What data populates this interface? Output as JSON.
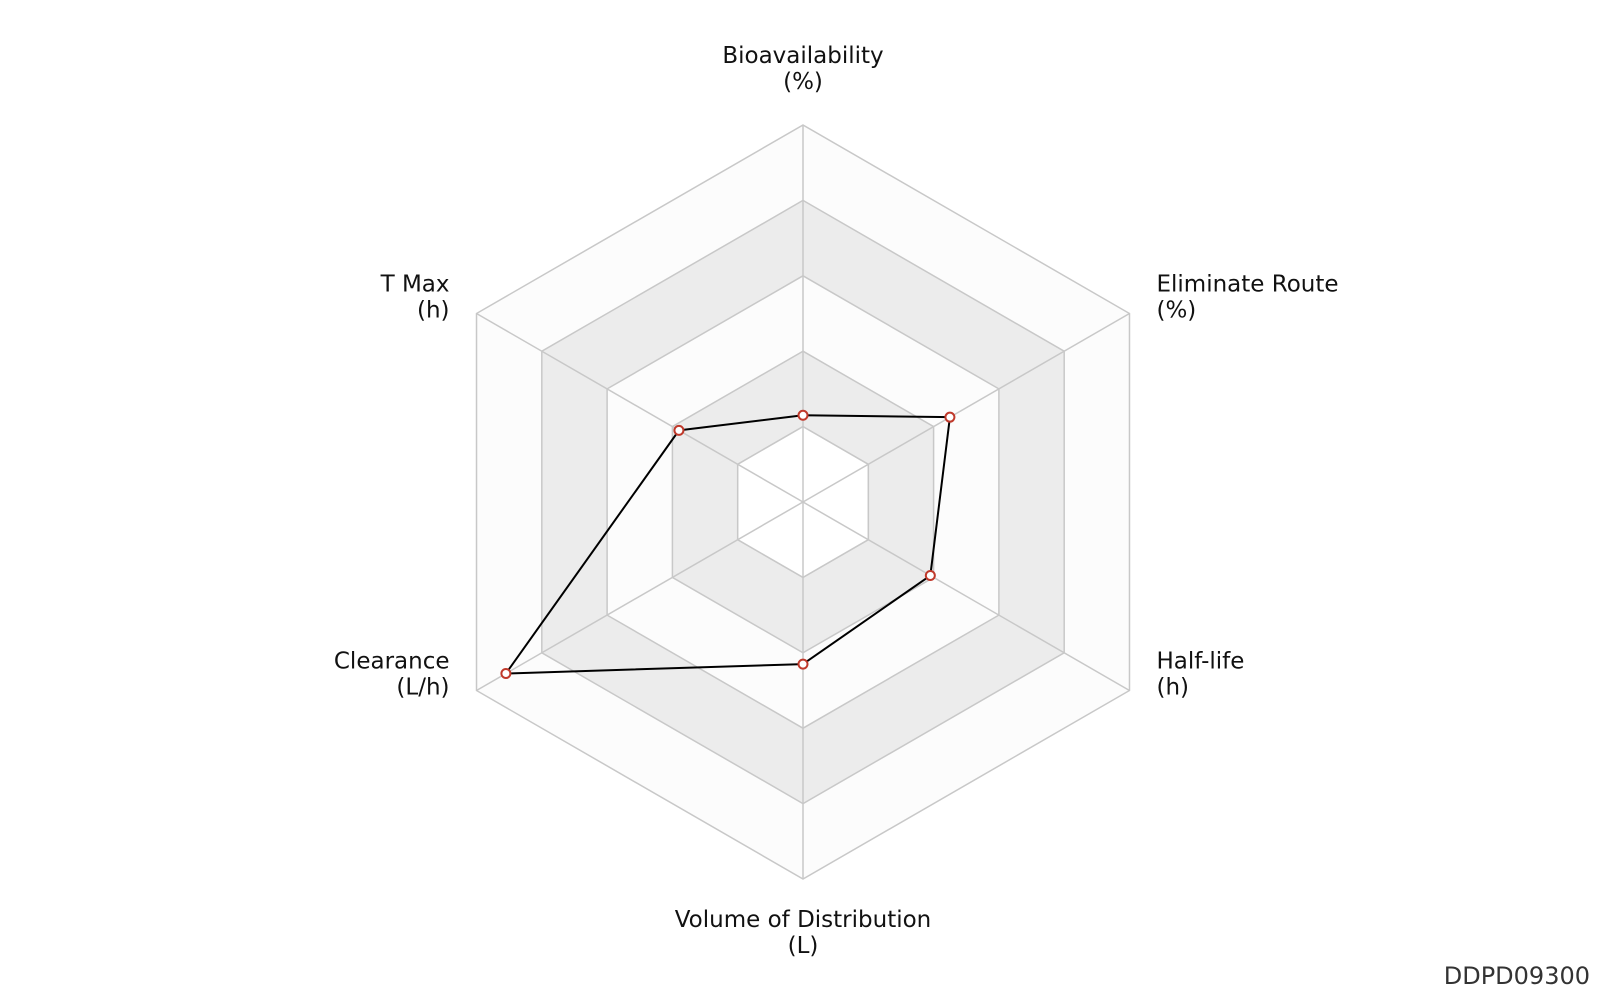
{
  "chart_data": {
    "type": "radar",
    "axes": [
      {
        "name": "Bioavailability",
        "unit": "(%)"
      },
      {
        "name": "Eliminate Route",
        "unit": "(%)"
      },
      {
        "name": "Half-life",
        "unit": "(h)"
      },
      {
        "name": "Volume of Distribution",
        "unit": "(L)"
      },
      {
        "name": "Clearance",
        "unit": "(L/h)"
      },
      {
        "name": "T Max",
        "unit": "(h)"
      }
    ],
    "rings": 5,
    "series": [
      {
        "values": [
          0.23,
          0.45,
          0.39,
          0.43,
          0.91,
          0.38
        ]
      }
    ],
    "range": [
      0,
      1
    ],
    "colors": {
      "band_fill": "#ececec",
      "band_alt_fill": "#fcfcfc",
      "grid": "#c8c8c8",
      "line": "#000000",
      "marker_stroke": "#c0392b",
      "marker_fill": "#ffffff"
    }
  },
  "footer": {
    "id": "DDPD09300"
  }
}
